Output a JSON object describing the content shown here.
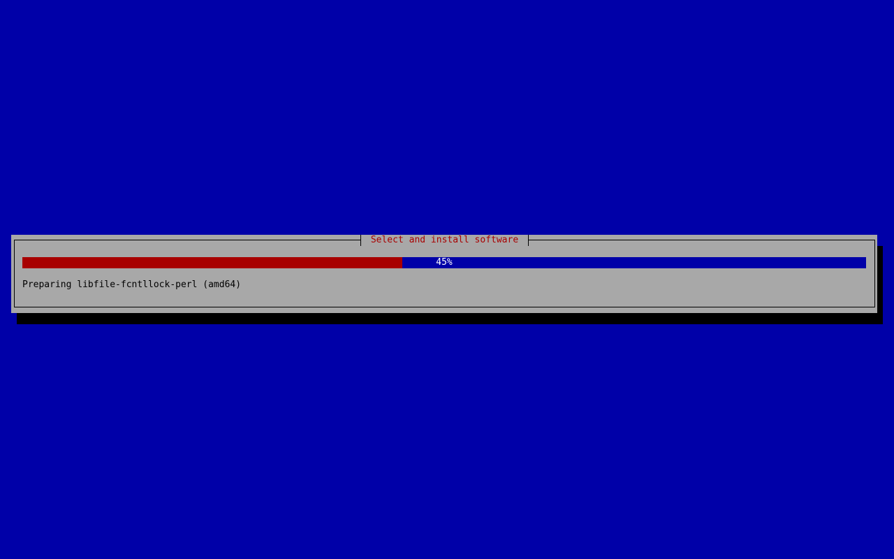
{
  "dialog": {
    "title": "Select and install software",
    "progress_percent": 45,
    "progress_label": "45%",
    "status": "Preparing libfile-fcntllock-perl (amd64)"
  },
  "colors": {
    "background": "#0000a8",
    "dialog": "#a8a8a8",
    "title": "#a80000",
    "progress_fill": "#a80000",
    "progress_track": "#0000a8"
  }
}
